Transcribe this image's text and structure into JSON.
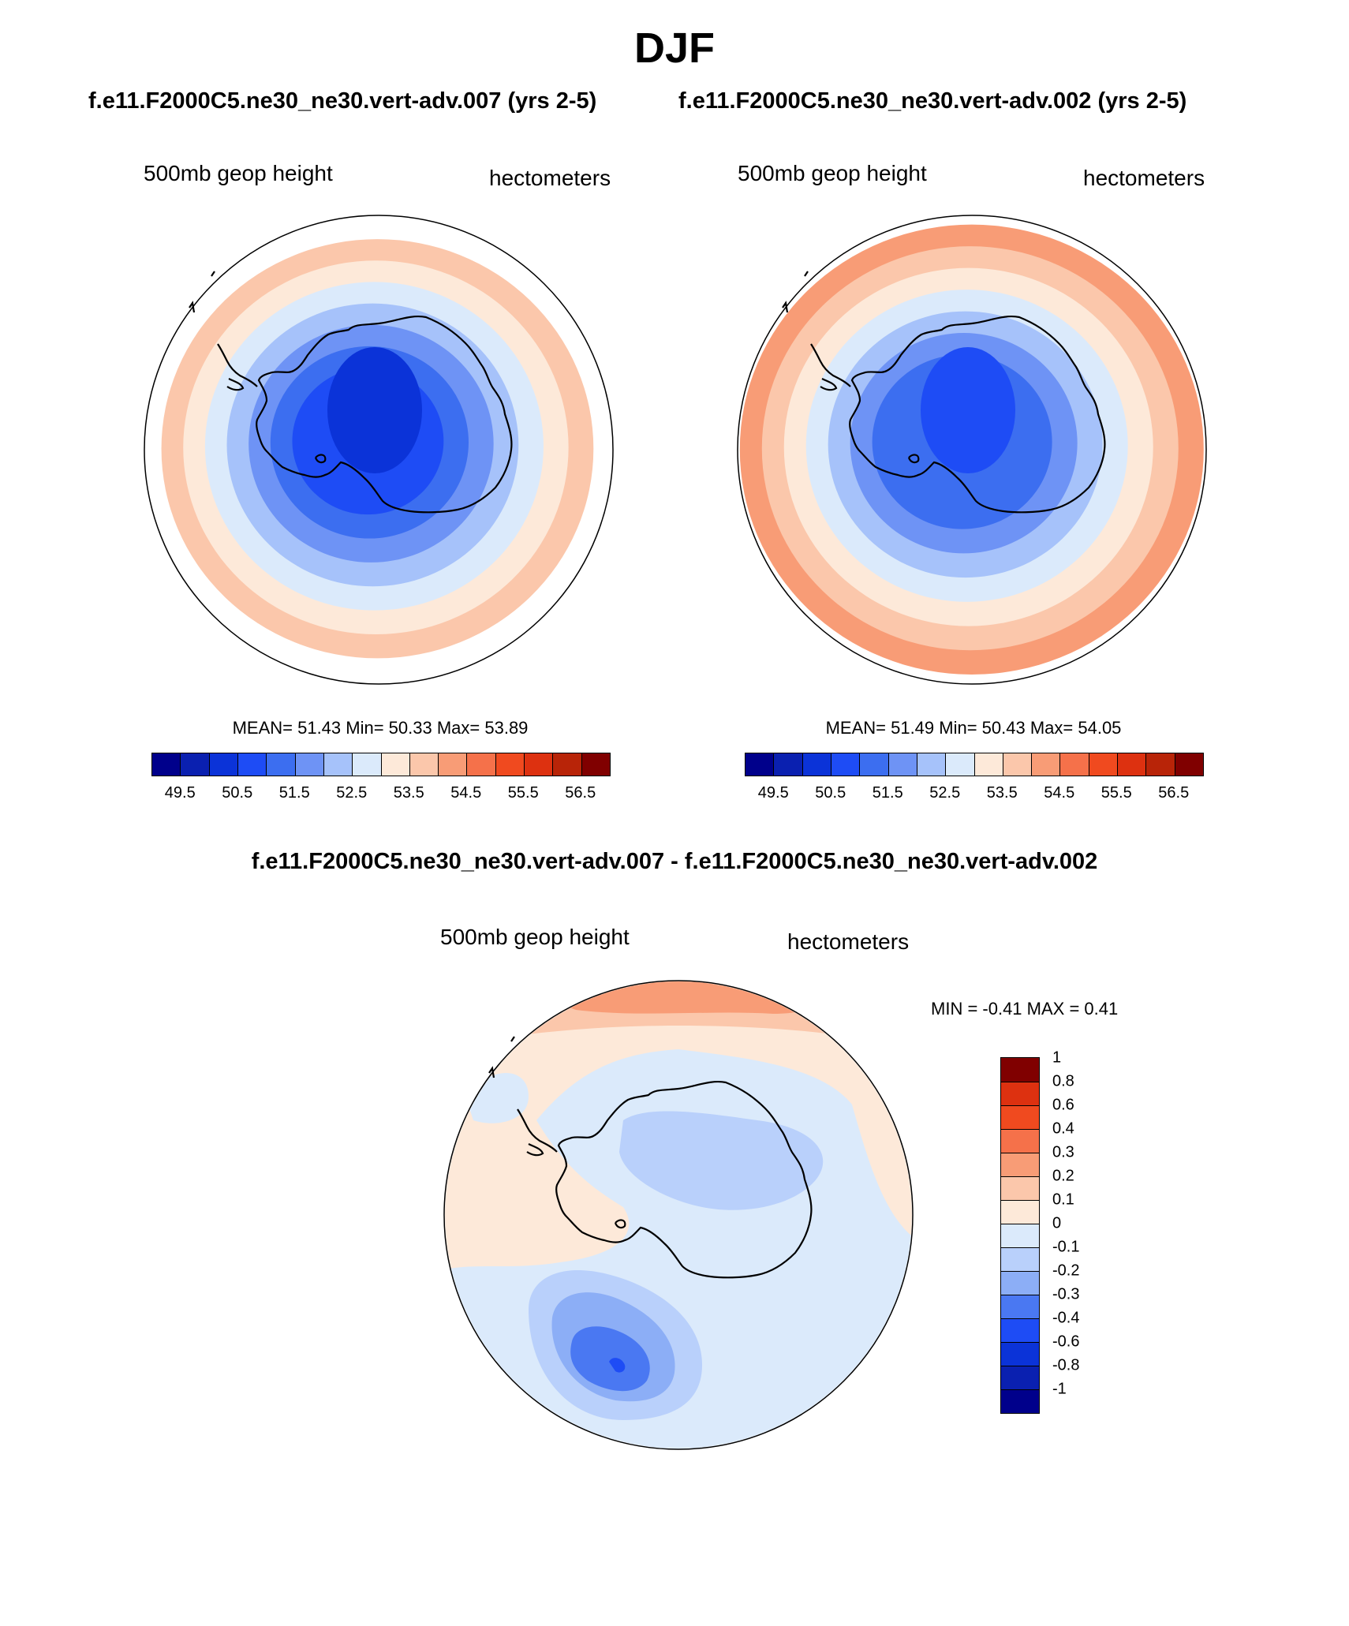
{
  "figure": {
    "title": "DJF",
    "diff_title": "f.e11.F2000C5.ne30_ne30.vert-adv.007 - f.e11.F2000C5.ne30_ne30.vert-adv.002"
  },
  "panels": [
    {
      "case": "f.e11.F2000C5.ne30_ne30.vert-adv.007 (yrs 2-5)",
      "left_label": "500mb geop height",
      "right_label": "hectometers",
      "stats": "MEAN=  51.43  Min=  50.33  Max=  53.89",
      "mean": 51.43,
      "min": 50.33,
      "max": 53.89,
      "center_level": 50.4
    },
    {
      "case": "f.e11.F2000C5.ne30_ne30.vert-adv.002 (yrs 2-5)",
      "left_label": "500mb geop height",
      "right_label": "hectometers",
      "stats": "MEAN=  51.49  Min=  50.43  Max=  54.05",
      "mean": 51.49,
      "min": 50.43,
      "max": 54.05,
      "center_level": 50.6
    }
  ],
  "abs_colorbar": {
    "colors": [
      "#00008b",
      "#0a20b0",
      "#0b33d8",
      "#1e4cf5",
      "#3c6ef0",
      "#6e93f5",
      "#a6c2fa",
      "#dbeafb",
      "#fde9d9",
      "#fbc7ab",
      "#f89c76",
      "#f5714a",
      "#f04a1f",
      "#dd3110",
      "#b82408",
      "#800000"
    ],
    "tick_labels": [
      "49.5",
      "50.5",
      "51.5",
      "52.5",
      "53.5",
      "54.5",
      "55.5",
      "56.5"
    ]
  },
  "diff_panel": {
    "left_label": "500mb geop height",
    "right_label": "hectometers",
    "minmax": "MIN =  -0.41 MAX =   0.41",
    "min": -0.41,
    "max": 0.41
  },
  "diff_colorbar": {
    "colors": [
      "#00008b",
      "#0a20b0",
      "#0b33d8",
      "#1e4cf5",
      "#4a78f2",
      "#8caef6",
      "#b9d0fb",
      "#dbeafb",
      "#fde9d9",
      "#fbc7ab",
      "#f89c76",
      "#f5714a",
      "#f04a1f",
      "#dd3110",
      "#800000"
    ],
    "tick_labels": [
      "-1",
      "-0.8",
      "-0.6",
      "-0.4",
      "-0.3",
      "-0.2",
      "-0.1",
      "0",
      "0.1",
      "0.2",
      "0.3",
      "0.4",
      "0.6",
      "0.8",
      "1"
    ]
  }
}
